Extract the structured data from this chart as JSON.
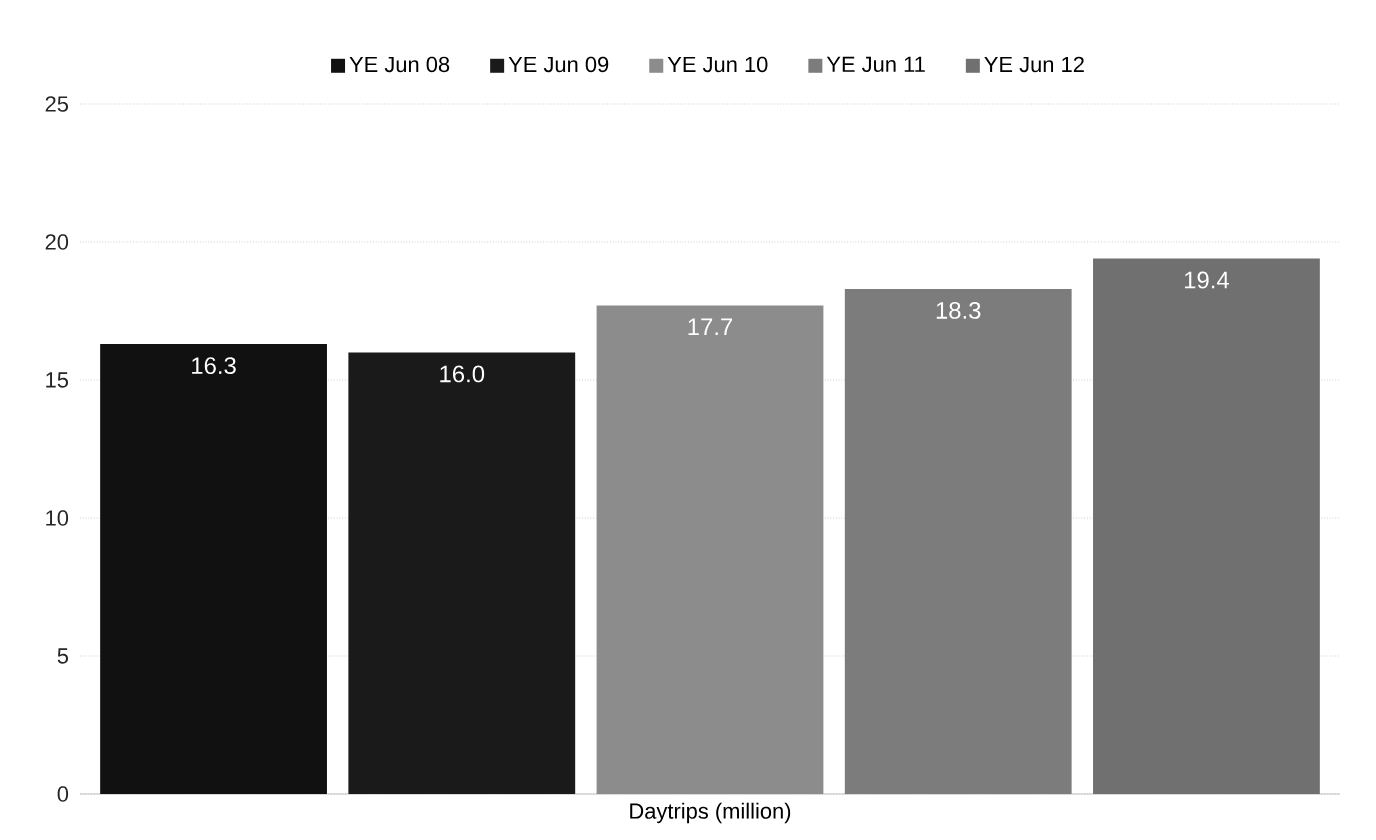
{
  "chart_data": {
    "type": "bar",
    "xlabel": "Daytrips (million)",
    "categories": [
      null
    ],
    "series": [
      {
        "name": "YE Jun 08",
        "color": "#111111",
        "values": [
          16.3
        ],
        "value_labels": [
          "16.3"
        ]
      },
      {
        "name": "YE Jun 09",
        "color": "#1a1a1a",
        "values": [
          16.0
        ],
        "value_labels": [
          "16.0"
        ]
      },
      {
        "name": "YE Jun 10",
        "color": "#8c8c8c",
        "values": [
          17.7
        ],
        "value_labels": [
          "17.7"
        ]
      },
      {
        "name": "YE Jun 11",
        "color": "#7c7c7c",
        "values": [
          18.3
        ],
        "value_labels": [
          "18.3"
        ]
      },
      {
        "name": "YE Jun 12",
        "color": "#707070",
        "values": [
          19.4
        ],
        "value_labels": [
          "19.4"
        ]
      }
    ],
    "ylim": [
      0,
      25
    ],
    "yticks": [
      0,
      5,
      10,
      15,
      20,
      25
    ],
    "grid": "y",
    "legend": "top"
  }
}
